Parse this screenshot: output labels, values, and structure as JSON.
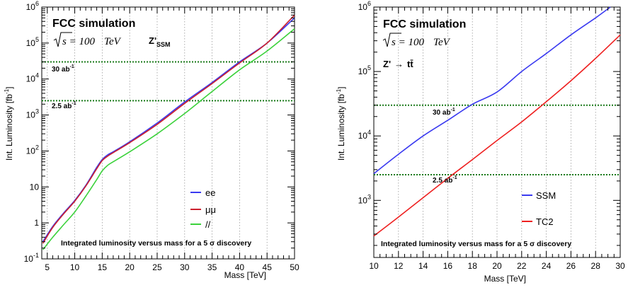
{
  "colors": {
    "ee": "#3a3af0",
    "mumu": "#cc1f2e",
    "ll": "#3cd23c",
    "SSM": "#3a3af0",
    "TC2": "#ee2020",
    "reference_line": "#1a7a1a",
    "grid": "#9a9a9a"
  },
  "chart_data": [
    {
      "type": "line",
      "title": "FCC simulation",
      "energy_prefix": "s = 100",
      "energy_unit": "TeV",
      "model_base": "Z'",
      "model_sub": "SSM",
      "xlabel": "Mass [TeV]",
      "ylabel_main": "Int. Luminosity [fb",
      "ylabel_exp": "-1",
      "ylabel_end": "]",
      "xlim": [
        4,
        50
      ],
      "ylim": [
        0.1,
        1000000
      ],
      "yscale": "log",
      "grid": "vertical dotted",
      "xticks": [
        5,
        10,
        15,
        20,
        25,
        30,
        35,
        40,
        45,
        50
      ],
      "ytick_labels": [
        {
          "v": 0.1,
          "base": "10",
          "exp": "-1"
        },
        {
          "v": 1,
          "base": "1",
          "exp": ""
        },
        {
          "v": 10,
          "base": "10",
          "exp": ""
        },
        {
          "v": 100,
          "base": "10",
          "exp": "2"
        },
        {
          "v": 1000,
          "base": "10",
          "exp": "3"
        },
        {
          "v": 10000,
          "base": "10",
          "exp": "4"
        },
        {
          "v": 100000,
          "base": "10",
          "exp": "5"
        },
        {
          "v": 1000000,
          "base": "10",
          "exp": "6"
        }
      ],
      "reference_lines": [
        {
          "y": 30000,
          "label_base": "30 ab",
          "label_exp": "-1"
        },
        {
          "y": 2500,
          "label_base": "2.5 ab",
          "label_exp": "-1"
        }
      ],
      "legend_position": "lower-right",
      "footer": "Integrated luminosity versus mass for a 5  σ discovery",
      "series": [
        {
          "name": "ee",
          "color_key": "ee",
          "x": [
            4.2,
            6,
            8,
            10,
            12,
            14,
            15,
            16,
            17,
            20,
            25,
            30,
            35,
            40,
            45,
            50
          ],
          "y": [
            0.3,
            0.8,
            1.9,
            4.2,
            11,
            35,
            58,
            78,
            95,
            180,
            600,
            2300,
            8000,
            30000,
            100000,
            500000
          ]
        },
        {
          "name": "μμ",
          "color_key": "mumu",
          "x": [
            4.2,
            6,
            8,
            10,
            12,
            14,
            15,
            16,
            17,
            20,
            25,
            30,
            35,
            40,
            45,
            50
          ],
          "y": [
            0.27,
            0.75,
            1.8,
            4.0,
            10.5,
            32,
            54,
            72,
            90,
            170,
            550,
            2100,
            7500,
            28000,
            100000,
            600000
          ]
        },
        {
          "name": "//",
          "color_key": "ll",
          "x": [
            4.2,
            6,
            8,
            10,
            12,
            14,
            15,
            16,
            17,
            20,
            25,
            30,
            35,
            40,
            45,
            50
          ],
          "y": [
            0.18,
            0.4,
            0.9,
            2.0,
            5.5,
            16,
            28,
            40,
            50,
            95,
            300,
            1100,
            4500,
            18000,
            60000,
            250000
          ]
        }
      ]
    },
    {
      "type": "line",
      "title": "FCC simulation",
      "energy_prefix": "s = 100",
      "energy_unit": "TeV",
      "channel_from": "Z'",
      "channel_arrow": "→",
      "channel_to": "tt̄",
      "xlabel": "Mass [TeV]",
      "ylabel_main": "Int. Luminosity [fb",
      "ylabel_exp": "-1",
      "ylabel_end": "]",
      "xlim": [
        10,
        30
      ],
      "ylim": [
        130,
        1000000
      ],
      "yscale": "log",
      "grid": "vertical dotted",
      "xticks": [
        10,
        12,
        14,
        16,
        18,
        20,
        22,
        24,
        26,
        28,
        30
      ],
      "ytick_labels": [
        {
          "v": 1000,
          "base": "10",
          "exp": "3"
        },
        {
          "v": 10000,
          "base": "10",
          "exp": "4"
        },
        {
          "v": 100000,
          "base": "10",
          "exp": "5"
        },
        {
          "v": 1000000,
          "base": "10",
          "exp": "6"
        }
      ],
      "reference_lines": [
        {
          "y": 30000,
          "label_base": "30 ab",
          "label_exp": "-1"
        },
        {
          "y": 2500,
          "label_base": "2.5 ab",
          "label_exp": "-1"
        }
      ],
      "legend_position": "lower-right",
      "footer": "Integrated luminosity versus mass for a 5  σ discovery",
      "series": [
        {
          "name": "SSM",
          "color_key": "SSM",
          "x": [
            10,
            12,
            14,
            16,
            18,
            20,
            22,
            24,
            26,
            28,
            29.2
          ],
          "y": [
            2600,
            5200,
            10000,
            17500,
            31000,
            48000,
            100000,
            190000,
            370000,
            680000,
            1000000
          ]
        },
        {
          "name": "TC2",
          "color_key": "TC2",
          "x": [
            10,
            12,
            14,
            16,
            18,
            20,
            22,
            24,
            26,
            28,
            30
          ],
          "y": [
            280,
            550,
            1100,
            2200,
            4300,
            8500,
            16500,
            34000,
            72000,
            160000,
            370000
          ]
        }
      ]
    }
  ]
}
